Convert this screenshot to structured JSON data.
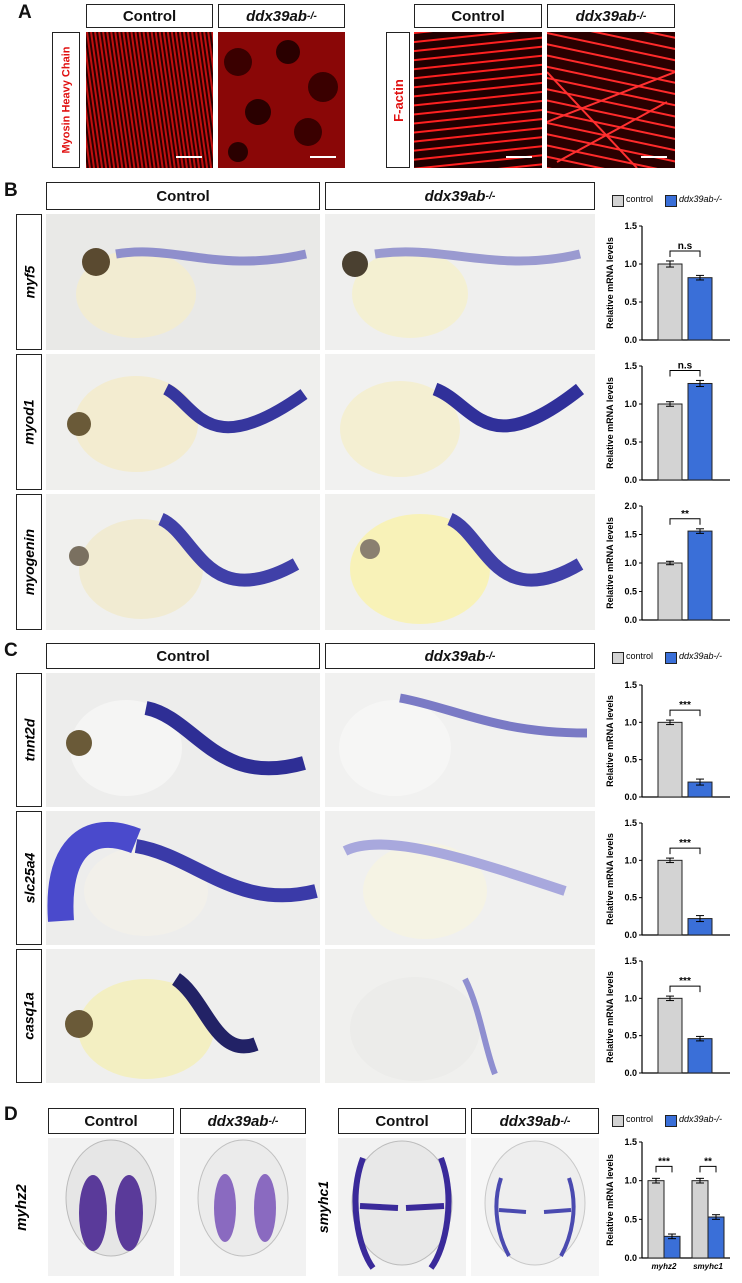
{
  "panels": {
    "a": "A",
    "b": "B",
    "c": "C",
    "d": "D"
  },
  "panel_a": {
    "col_labels": [
      "Control",
      "ddx39ab",
      "Control",
      "ddx39ab"
    ],
    "row_labels": [
      "Myosin Heavy Chain",
      "F-actin"
    ]
  },
  "panel_b": {
    "col_labels": [
      "Control",
      "ddx39ab"
    ],
    "rows": [
      "myf5",
      "myod1",
      "myogenin"
    ],
    "legend": [
      "control",
      "ddx39ab-/-"
    ]
  },
  "panel_c": {
    "col_labels": [
      "Control",
      "ddx39ab"
    ],
    "rows": [
      "tnnt2d",
      "slc25a4",
      "casq1a"
    ],
    "legend": [
      "control",
      "ddx39ab-/-"
    ]
  },
  "panel_d": {
    "col_labels": [
      "Control",
      "ddx39ab",
      "Control",
      "ddx39ab"
    ],
    "row_labels": [
      "myhz2",
      "smyhc1"
    ],
    "legend": [
      "control",
      "ddx39ab-/-"
    ]
  },
  "genotype_superscript": "-/-",
  "colors": {
    "control": "#d3d3d3",
    "mutant": "#3a6fd8",
    "stain": "#3b3fb0",
    "fluor": "#e41414"
  },
  "chart_data": [
    {
      "type": "bar",
      "gene": "myf5",
      "categories": [
        "control",
        "ddx39ab-/-"
      ],
      "values": [
        1.0,
        0.82
      ],
      "errors": [
        0.04,
        0.03
      ],
      "ylabel": "Relative mRNA levels",
      "ylim": [
        0,
        1.5
      ],
      "yticks": [
        "0.0",
        "0.5",
        "1.0",
        "1.5"
      ],
      "significance": "n.s"
    },
    {
      "type": "bar",
      "gene": "myod1",
      "categories": [
        "control",
        "ddx39ab-/-"
      ],
      "values": [
        1.0,
        1.27
      ],
      "errors": [
        0.03,
        0.04
      ],
      "ylabel": "Relative mRNA levels",
      "ylim": [
        0,
        1.5
      ],
      "yticks": [
        "0.0",
        "0.5",
        "1.0",
        "1.5"
      ],
      "significance": "n.s"
    },
    {
      "type": "bar",
      "gene": "myogenin",
      "categories": [
        "control",
        "ddx39ab-/-"
      ],
      "values": [
        1.0,
        1.56
      ],
      "errors": [
        0.03,
        0.04
      ],
      "ylabel": "Relative mRNA levels",
      "ylim": [
        0,
        2.0
      ],
      "yticks": [
        "0.0",
        "0.5",
        "1.0",
        "1.5",
        "2.0"
      ],
      "significance": "**"
    },
    {
      "type": "bar",
      "gene": "tnnt2d",
      "categories": [
        "control",
        "ddx39ab-/-"
      ],
      "values": [
        1.0,
        0.2
      ],
      "errors": [
        0.03,
        0.04
      ],
      "ylabel": "Relative mRNA levels",
      "ylim": [
        0,
        1.5
      ],
      "yticks": [
        "0.0",
        "0.5",
        "1.0",
        "1.5"
      ],
      "significance": "***"
    },
    {
      "type": "bar",
      "gene": "slc25a4",
      "categories": [
        "control",
        "ddx39ab-/-"
      ],
      "values": [
        1.0,
        0.22
      ],
      "errors": [
        0.03,
        0.04
      ],
      "ylabel": "Relative mRNA levels",
      "ylim": [
        0,
        1.5
      ],
      "yticks": [
        "0.0",
        "0.5",
        "1.0",
        "1.5"
      ],
      "significance": "***"
    },
    {
      "type": "bar",
      "gene": "casq1a",
      "categories": [
        "control",
        "ddx39ab-/-"
      ],
      "values": [
        1.0,
        0.46
      ],
      "errors": [
        0.03,
        0.03
      ],
      "ylabel": "Relative mRNA levels",
      "ylim": [
        0,
        1.5
      ],
      "yticks": [
        "0.0",
        "0.5",
        "1.0",
        "1.5"
      ],
      "significance": "***"
    },
    {
      "type": "bar",
      "categories": [
        "myhz2",
        "smyhc1"
      ],
      "series": [
        {
          "name": "control",
          "values": [
            1.0,
            1.0
          ],
          "errors": [
            0.03,
            0.03
          ]
        },
        {
          "name": "ddx39ab-/-",
          "values": [
            0.28,
            0.53
          ],
          "errors": [
            0.03,
            0.03
          ]
        }
      ],
      "ylabel": "Relative mRNA levels",
      "ylim": [
        0,
        1.5
      ],
      "yticks": [
        "0.0",
        "0.5",
        "1.0",
        "1.5"
      ],
      "significance": [
        "***",
        "**"
      ]
    }
  ]
}
